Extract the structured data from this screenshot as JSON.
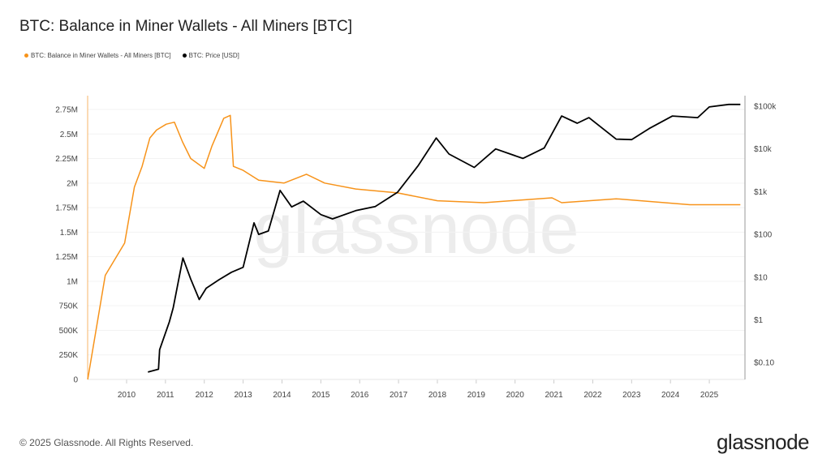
{
  "chart_data": {
    "type": "line",
    "title": "BTC: Balance in Miner Wallets - All Miners [BTC]",
    "xlim": [
      2009.0,
      2025.95
    ],
    "x_ticks": [
      "2010",
      "2011",
      "2012",
      "2013",
      "2014",
      "2015",
      "2016",
      "2017",
      "2018",
      "2019",
      "2020",
      "2021",
      "2022",
      "2023",
      "2024",
      "2025"
    ],
    "y_left": {
      "lim": [
        0,
        2750000
      ],
      "ticks": [
        0,
        250000,
        500000,
        750000,
        1000000,
        1250000,
        1500000,
        1750000,
        2000000,
        2250000,
        2500000,
        2750000
      ],
      "tick_labels": [
        "0",
        "250K",
        "500K",
        "750K",
        "1M",
        "1.25M",
        "1.5M",
        "1.75M",
        "2M",
        "2.25M",
        "2.5M",
        "2.75M"
      ]
    },
    "y_right": {
      "scale": "log",
      "lim": [
        0.04,
        130000
      ],
      "ticks": [
        0.1,
        1,
        10,
        100,
        1000,
        10000,
        100000
      ],
      "tick_labels": [
        "$0.10",
        "$1",
        "$10",
        "$100",
        "$1k",
        "$10k",
        "$100k"
      ]
    },
    "grid": true,
    "legend_placement": "top-left",
    "series": [
      {
        "name": "BTC: Balance in Miner Wallets - All Miners [BTC]",
        "axis": "left",
        "color": "#f7931a",
        "x": [
          2009.0,
          2009.45,
          2009.95,
          2010.2,
          2010.4,
          2010.6,
          2010.77,
          2011.02,
          2011.23,
          2011.44,
          2011.65,
          2012.0,
          2012.2,
          2012.5,
          2012.67,
          2012.75,
          2013.0,
          2013.4,
          2014.05,
          2014.63,
          2015.1,
          2015.9,
          2016.97,
          2018.0,
          2019.2,
          2020.95,
          2021.2,
          2022.6,
          2024.5,
          2025.8
        ],
        "values": [
          0,
          1060000,
          1390000,
          1960000,
          2170000,
          2460000,
          2540000,
          2600000,
          2620000,
          2420000,
          2250000,
          2150000,
          2380000,
          2660000,
          2690000,
          2170000,
          2130000,
          2030000,
          2000000,
          2090000,
          2000000,
          1940000,
          1900000,
          1820000,
          1800000,
          1850000,
          1800000,
          1840000,
          1780000,
          1780000
        ]
      },
      {
        "name": "BTC: Price [USD]",
        "axis": "right",
        "color": "#000000",
        "x": [
          2010.55,
          2010.82,
          2010.85,
          2011.1,
          2011.2,
          2011.45,
          2011.65,
          2011.87,
          2012.05,
          2012.38,
          2012.7,
          2013.0,
          2013.28,
          2013.4,
          2013.65,
          2013.95,
          2014.25,
          2014.55,
          2015.0,
          2015.3,
          2015.9,
          2016.4,
          2016.97,
          2017.5,
          2017.97,
          2018.3,
          2018.95,
          2019.5,
          2020.2,
          2020.75,
          2021.2,
          2021.6,
          2021.9,
          2022.6,
          2023.0,
          2023.45,
          2024.05,
          2024.7,
          2025.0,
          2025.5,
          2025.8
        ],
        "values": [
          0.06,
          0.07,
          0.2,
          0.9,
          1.9,
          28,
          9,
          3,
          5.5,
          8.7,
          13,
          17,
          186,
          100,
          120,
          1070,
          440,
          600,
          290,
          230,
          360,
          450,
          960,
          4000,
          18000,
          7600,
          3700,
          10000,
          6000,
          10500,
          59000,
          40000,
          54000,
          17000,
          16500,
          30000,
          59000,
          54000,
          96000,
          110000,
          110000
        ]
      }
    ]
  },
  "watermark": "glassnode",
  "footer": {
    "copyright": "© 2025 Glassnode. All Rights Reserved.",
    "logo": "glassnode"
  }
}
